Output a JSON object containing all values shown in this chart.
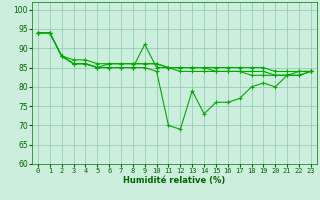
{
  "title": "",
  "xlabel": "Humidité relative (%)",
  "ylabel": "",
  "bg_color": "#cceedd",
  "grid_color": "#99ccbb",
  "line_color": "#00aa00",
  "marker_color": "#00aa00",
  "xlim": [
    -0.5,
    23.5
  ],
  "ylim": [
    60,
    102
  ],
  "yticks": [
    60,
    65,
    70,
    75,
    80,
    85,
    90,
    95,
    100
  ],
  "xticks": [
    0,
    1,
    2,
    3,
    4,
    5,
    6,
    7,
    8,
    9,
    10,
    11,
    12,
    13,
    14,
    15,
    16,
    17,
    18,
    19,
    20,
    21,
    22,
    23
  ],
  "series": [
    [
      94,
      94,
      88,
      86,
      86,
      85,
      85,
      85,
      85,
      91,
      85,
      85,
      84,
      84,
      84,
      84,
      84,
      84,
      83,
      83,
      83,
      83,
      83,
      84
    ],
    [
      94,
      94,
      88,
      86,
      86,
      85,
      85,
      85,
      85,
      85,
      84,
      70,
      69,
      79,
      73,
      76,
      76,
      77,
      80,
      81,
      80,
      83,
      84,
      84
    ],
    [
      94,
      94,
      88,
      87,
      87,
      86,
      86,
      86,
      86,
      86,
      86,
      85,
      85,
      85,
      85,
      85,
      85,
      85,
      85,
      85,
      84,
      84,
      84,
      84
    ],
    [
      94,
      94,
      88,
      86,
      86,
      85,
      86,
      86,
      86,
      86,
      86,
      85,
      85,
      85,
      85,
      84,
      84,
      84,
      84,
      84,
      83,
      83,
      83,
      84
    ]
  ],
  "xlabel_fontsize": 6,
  "ylabel_fontsize": 6,
  "tick_fontsize": 5,
  "linewidth": 0.8,
  "markersize": 3
}
